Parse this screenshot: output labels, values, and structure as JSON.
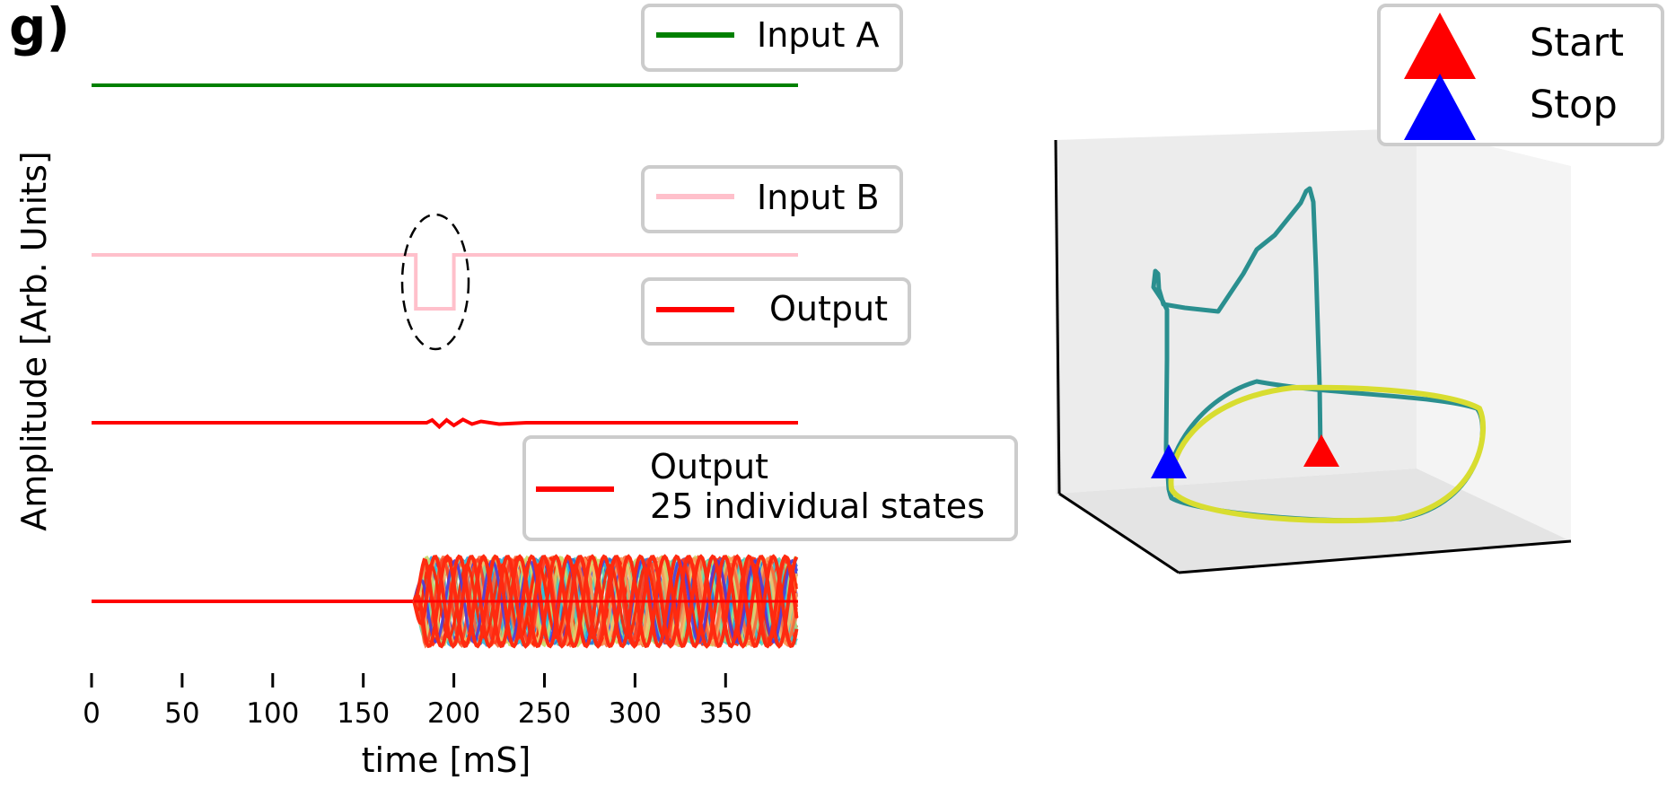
{
  "panel_label": "g)",
  "chart_data": [
    {
      "type": "line",
      "panel": "left",
      "xlabel": "time [mS]",
      "ylabel": "Amplitude [Arb. Units]",
      "xlim": [
        0,
        390
      ],
      "x_ticks": [
        0,
        50,
        100,
        150,
        200,
        250,
        300,
        350
      ],
      "x_tick_labels": [
        "0",
        "50",
        "100",
        "150",
        "200",
        "250",
        "300",
        "350"
      ],
      "grid": false,
      "series": [
        {
          "name": "Input A",
          "color": "#008000",
          "description_of_signal": "constant level",
          "points": [
            [
              0,
              0
            ],
            [
              390,
              0
            ]
          ]
        },
        {
          "name": "Input B",
          "color": "#ffc0cb",
          "pulse": {
            "start": 179,
            "end": 200,
            "level": -1
          },
          "points": [
            [
              0,
              0
            ],
            [
              179,
              0
            ],
            [
              179,
              -1
            ],
            [
              200,
              -1
            ],
            [
              200,
              0
            ],
            [
              390,
              0
            ]
          ]
        },
        {
          "name": "Output",
          "color": "#ff0000",
          "points": [
            [
              0,
              0
            ],
            [
              185,
              0
            ],
            [
              188,
              0.1
            ],
            [
              192,
              -0.15
            ],
            [
              196,
              0.1
            ],
            [
              200,
              -0.1
            ],
            [
              205,
              0.12
            ],
            [
              210,
              -0.05
            ],
            [
              215,
              0.05
            ],
            [
              225,
              -0.05
            ],
            [
              240,
              0
            ],
            [
              390,
              0
            ]
          ]
        },
        {
          "name": "Output\n25 individual states",
          "legend_label_lines": [
            "Output",
            "25 individual states"
          ],
          "color": "#ff0000",
          "n_states": 25,
          "onset": 178,
          "end": 390,
          "period": 20,
          "amplitude": 1
        }
      ],
      "legend_entries": [
        {
          "label": "Input A",
          "color": "#008000"
        },
        {
          "label": "Input B",
          "color": "#ffc0cb"
        },
        {
          "label": "Output",
          "color": "#ff0000"
        },
        {
          "label_lines": [
            "Output",
            "25 individual states"
          ],
          "color": "#ff0000"
        }
      ],
      "annotation": "dashed ellipse around Input B pulse",
      "state_colors": [
        "#4b3cdc",
        "#2e6fd8",
        "#2ea7e0",
        "#36c6d8",
        "#5fd4b0",
        "#9ad88a",
        "#c9d86a",
        "#f2c26a",
        "#f79a5a",
        "#f56a3c",
        "#ff3b1f",
        "#ff2200"
      ]
    },
    {
      "type": "line3d",
      "panel": "right",
      "legend_entries": [
        {
          "label": "Start",
          "color": "#ff0000",
          "marker": "triangle"
        },
        {
          "label": "Stop",
          "color": "#0000ff",
          "marker": "triangle"
        }
      ],
      "trajectory_color": "#2a8f8f",
      "loop_color": "#d8dd30"
    }
  ]
}
